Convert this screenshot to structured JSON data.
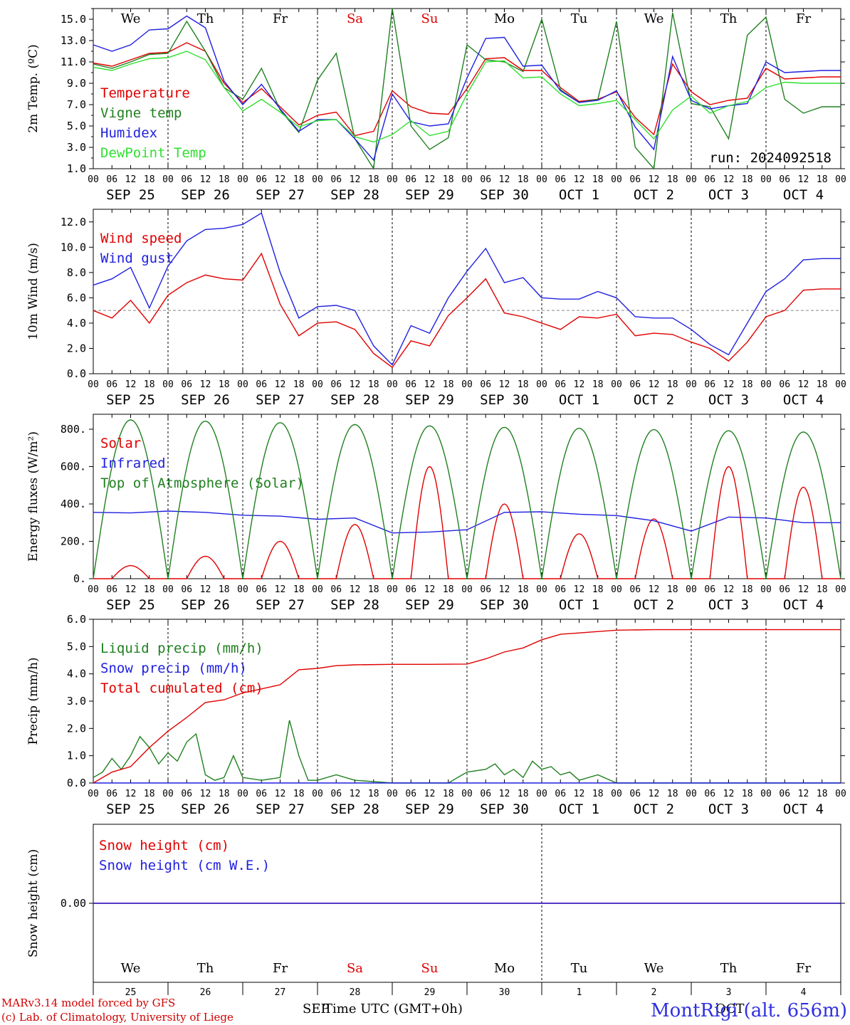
{
  "run_label": "run: 2024092518",
  "day_names": [
    {
      "name": "We",
      "color": "#000000"
    },
    {
      "name": "Th",
      "color": "#000000"
    },
    {
      "name": "Fr",
      "color": "#000000"
    },
    {
      "name": "Sa",
      "color": "#e00000"
    },
    {
      "name": "Su",
      "color": "#e00000"
    },
    {
      "name": "Mo",
      "color": "#000000"
    },
    {
      "name": "Tu",
      "color": "#000000"
    },
    {
      "name": "We",
      "color": "#000000"
    },
    {
      "name": "Th",
      "color": "#000000"
    },
    {
      "name": "Fr",
      "color": "#000000"
    }
  ],
  "dates": [
    "SEP 25",
    "SEP 26",
    "SEP 27",
    "SEP 28",
    "SEP 29",
    "SEP 30",
    "OCT  1",
    "OCT  2",
    "OCT  3",
    "OCT  4"
  ],
  "hour_ticks": [
    "00",
    "06",
    "12",
    "18"
  ],
  "end_hour": "00",
  "day_numbers": [
    "25",
    "26",
    "27",
    "28",
    "29",
    "30",
    "1",
    "2",
    "3",
    "4"
  ],
  "bottom_month_left": "SEP",
  "bottom_month_right": "OCT",
  "footer": {
    "line1": "MARv3.14 model forced by GFS",
    "line2": "(c) Lab. of Climatology, University of Liege",
    "xlabel": "Time UTC (GMT+0h)",
    "station": "MontRigi (alt. 656m)"
  },
  "chart_data": [
    {
      "type": "line",
      "ylabel": "2m Temp. (ºC)",
      "ylim": [
        1.0,
        16.0
      ],
      "yticks": [
        "1.0",
        "3.0",
        "5.0",
        "7.0",
        "9.0",
        "11.0",
        "13.0",
        "15.0"
      ],
      "x_unit": "hours since SEP 25 00 UTC",
      "series": [
        {
          "name": "Temperature",
          "color": "#e00000",
          "x": [
            0,
            6,
            12,
            18,
            24,
            30,
            36,
            42,
            48,
            54,
            60,
            66,
            72,
            78,
            84,
            90,
            96,
            102,
            108,
            114,
            120,
            126,
            132,
            138,
            144,
            150,
            156,
            162,
            168,
            174,
            180,
            186,
            192,
            198,
            204,
            210,
            216,
            222,
            228,
            234,
            240
          ],
          "y": [
            10.9,
            10.6,
            11.2,
            11.8,
            11.9,
            12.8,
            12.0,
            9.0,
            7.2,
            8.5,
            6.8,
            5.1,
            6.0,
            6.3,
            4.1,
            4.5,
            8.3,
            6.8,
            6.2,
            6.1,
            8.5,
            11.3,
            11.4,
            10.2,
            10.2,
            8.6,
            7.3,
            7.5,
            8.2,
            5.8,
            4.2,
            10.8,
            8.2,
            7.0,
            7.4,
            7.6,
            10.4,
            9.4,
            9.5,
            9.6,
            9.6
          ]
        },
        {
          "name": "Vigne temp",
          "color": "#208020",
          "x": [
            0,
            6,
            12,
            18,
            24,
            30,
            36,
            42,
            48,
            54,
            60,
            66,
            72,
            78,
            84,
            90,
            96,
            102,
            108,
            114,
            120,
            126,
            132,
            138,
            144,
            150,
            156,
            162,
            168,
            174,
            180,
            186,
            192,
            198,
            204,
            210,
            216,
            222,
            228,
            234,
            240
          ],
          "y": [
            10.8,
            10.4,
            11.0,
            11.7,
            11.8,
            14.8,
            12.0,
            8.6,
            7.5,
            10.4,
            6.5,
            4.4,
            9.3,
            11.8,
            3.8,
            0.8,
            16.0,
            5.0,
            2.8,
            3.9,
            12.6,
            11.2,
            11.0,
            10.1,
            15.0,
            8.4,
            7.2,
            7.5,
            14.8,
            3.0,
            0.5,
            15.6,
            7.1,
            6.8,
            3.8,
            13.5,
            15.2,
            7.5,
            6.2,
            6.8,
            6.8
          ]
        },
        {
          "name": "Humidex",
          "color": "#2020e0",
          "x": [
            0,
            6,
            12,
            18,
            24,
            30,
            36,
            42,
            48,
            54,
            60,
            66,
            72,
            78,
            84,
            90,
            96,
            102,
            108,
            114,
            120,
            126,
            132,
            138,
            144,
            150,
            156,
            162,
            168,
            174,
            180,
            186,
            192,
            198,
            204,
            210,
            216,
            222,
            228,
            234,
            240
          ],
          "y": [
            12.6,
            12.0,
            12.6,
            14.0,
            14.1,
            15.3,
            14.2,
            9.2,
            7.0,
            8.9,
            6.6,
            4.5,
            5.6,
            5.6,
            3.8,
            1.8,
            8.0,
            5.4,
            5.0,
            5.2,
            9.5,
            13.2,
            13.3,
            10.6,
            10.7,
            8.3,
            7.2,
            7.4,
            8.3,
            4.9,
            2.8,
            11.5,
            7.4,
            6.6,
            6.9,
            7.1,
            11.0,
            10.0,
            10.1,
            10.2,
            10.2
          ]
        },
        {
          "name": "DewPoint Temp",
          "color": "#30e030",
          "x": [
            0,
            6,
            12,
            18,
            24,
            30,
            36,
            42,
            48,
            54,
            60,
            66,
            72,
            78,
            84,
            90,
            96,
            102,
            108,
            114,
            120,
            126,
            132,
            138,
            144,
            150,
            156,
            162,
            168,
            174,
            180,
            186,
            192,
            198,
            204,
            210,
            216,
            222,
            228,
            234,
            240
          ],
          "y": [
            10.5,
            10.2,
            10.8,
            11.3,
            11.4,
            12.0,
            11.2,
            8.6,
            6.4,
            7.5,
            6.3,
            4.9,
            5.5,
            5.6,
            4.0,
            3.5,
            4.2,
            5.5,
            4.1,
            4.5,
            8.0,
            11.0,
            11.1,
            9.5,
            9.6,
            8.0,
            6.9,
            7.1,
            7.4,
            5.6,
            3.8,
            6.5,
            7.8,
            6.2,
            6.9,
            7.3,
            8.6,
            9.1,
            9.0,
            9.0,
            9.0
          ]
        }
      ]
    },
    {
      "type": "line",
      "ylabel": "10m Wind (m/s)",
      "ylim": [
        0.0,
        13.0
      ],
      "yticks": [
        "0.0",
        "2.0",
        "4.0",
        "6.0",
        "8.0",
        "10.0",
        "12.0"
      ],
      "ref_line": 5.0,
      "series": [
        {
          "name": "Wind speed",
          "color": "#e00000",
          "x": [
            0,
            6,
            12,
            18,
            24,
            30,
            36,
            42,
            48,
            54,
            60,
            66,
            72,
            78,
            84,
            90,
            96,
            102,
            108,
            114,
            120,
            126,
            132,
            138,
            144,
            150,
            156,
            162,
            168,
            174,
            180,
            186,
            192,
            198,
            204,
            210,
            216,
            222,
            228,
            234,
            240
          ],
          "y": [
            5.0,
            4.4,
            5.8,
            4.0,
            6.2,
            7.2,
            7.8,
            7.5,
            7.4,
            9.5,
            5.5,
            3.0,
            4.0,
            4.1,
            3.5,
            1.6,
            0.5,
            2.6,
            2.2,
            4.6,
            6.0,
            7.5,
            4.8,
            4.5,
            4.0,
            3.5,
            4.5,
            4.4,
            4.7,
            3.0,
            3.2,
            3.1,
            2.5,
            2.0,
            1.0,
            2.5,
            4.5,
            5.0,
            6.6,
            6.7,
            6.7
          ]
        },
        {
          "name": "Wind gust",
          "color": "#2020e0",
          "x": [
            0,
            6,
            12,
            18,
            24,
            30,
            36,
            42,
            48,
            54,
            60,
            66,
            72,
            78,
            84,
            90,
            96,
            102,
            108,
            114,
            120,
            126,
            132,
            138,
            144,
            150,
            156,
            162,
            168,
            174,
            180,
            186,
            192,
            198,
            204,
            210,
            216,
            222,
            228,
            234,
            240
          ],
          "y": [
            7.0,
            7.5,
            8.4,
            5.2,
            8.5,
            10.5,
            11.4,
            11.5,
            11.8,
            12.7,
            8.0,
            4.4,
            5.3,
            5.4,
            5.0,
            2.2,
            0.7,
            3.8,
            3.2,
            6.0,
            8.1,
            9.9,
            7.2,
            7.6,
            6.0,
            5.9,
            5.9,
            6.5,
            6.0,
            4.5,
            4.4,
            4.4,
            3.5,
            2.3,
            1.5,
            4.0,
            6.5,
            7.5,
            9.0,
            9.1,
            9.1
          ]
        }
      ]
    },
    {
      "type": "line",
      "ylabel": "Energy fluxes (W/m²)",
      "ylim": [
        0,
        880
      ],
      "yticks": [
        "0.",
        "200.",
        "400.",
        "600.",
        "800."
      ],
      "series": [
        {
          "name": "Solar",
          "color": "#e00000",
          "peaks": [
            70,
            120,
            200,
            290,
            600,
            400,
            240,
            320,
            600,
            490
          ],
          "peak_hour": 12,
          "half_width": 6
        },
        {
          "name": "Infrared",
          "color": "#2020e0",
          "x": [
            0,
            12,
            24,
            36,
            48,
            60,
            72,
            84,
            96,
            108,
            120,
            132,
            144,
            156,
            168,
            180,
            192,
            204,
            216,
            228,
            240
          ],
          "y": [
            355,
            352,
            362,
            355,
            340,
            335,
            318,
            325,
            245,
            250,
            262,
            355,
            358,
            345,
            338,
            310,
            255,
            330,
            325,
            300,
            300
          ]
        },
        {
          "name": "Top of Atmosphere (Solar)",
          "color": "#208020",
          "peaks": [
            850,
            843,
            835,
            825,
            818,
            810,
            805,
            798,
            792,
            785
          ],
          "peak_hour": 12,
          "half_width": 12
        }
      ]
    },
    {
      "type": "line",
      "ylabel": "Precip (mm/h)",
      "ylim": [
        0.0,
        6.0
      ],
      "yticks": [
        "0.0",
        "1.0",
        "2.0",
        "3.0",
        "4.0",
        "5.0",
        "6.0"
      ],
      "series": [
        {
          "name": "Liquid precip (mm/h)",
          "color": "#208020",
          "x": [
            0,
            3,
            6,
            9,
            12,
            15,
            18,
            21,
            24,
            27,
            30,
            33,
            36,
            39,
            42,
            45,
            48,
            54,
            60,
            63,
            66,
            69,
            72,
            78,
            84,
            90,
            96,
            102,
            108,
            114,
            120,
            126,
            129,
            132,
            135,
            138,
            141,
            144,
            147,
            150,
            153,
            156,
            162,
            168,
            174,
            180,
            216,
            240
          ],
          "y": [
            0.2,
            0.4,
            0.9,
            0.5,
            1.0,
            1.7,
            1.3,
            0.7,
            1.1,
            0.8,
            1.5,
            1.8,
            0.3,
            0.1,
            0.2,
            1.0,
            0.2,
            0.1,
            0.2,
            2.3,
            1.0,
            0.1,
            0.1,
            0.3,
            0.1,
            0.05,
            0.0,
            0.0,
            0.0,
            0.0,
            0.4,
            0.5,
            0.7,
            0.3,
            0.5,
            0.2,
            0.8,
            0.5,
            0.6,
            0.3,
            0.4,
            0.1,
            0.3,
            0.0,
            0.0,
            0.0,
            0.0,
            0.0
          ]
        },
        {
          "name": "Snow precip (mm/h)",
          "color": "#2020e0",
          "x": [
            0,
            240
          ],
          "y": [
            0,
            0
          ]
        },
        {
          "name": "Total cumulated (cm)",
          "color": "#e00000",
          "x": [
            0,
            6,
            12,
            18,
            24,
            30,
            36,
            42,
            48,
            54,
            60,
            66,
            72,
            78,
            84,
            96,
            108,
            120,
            126,
            132,
            138,
            144,
            150,
            156,
            168,
            180,
            240
          ],
          "y": [
            0.0,
            0.4,
            0.6,
            1.3,
            1.9,
            2.4,
            2.95,
            3.05,
            3.3,
            3.45,
            3.6,
            4.15,
            4.2,
            4.3,
            4.33,
            4.35,
            4.35,
            4.36,
            4.55,
            4.8,
            4.95,
            5.25,
            5.45,
            5.5,
            5.6,
            5.62,
            5.62
          ]
        }
      ]
    },
    {
      "type": "line",
      "ylabel": "Snow height (cm)",
      "ylim": [
        -1,
        1
      ],
      "yticks": [
        "0.00"
      ],
      "series": [
        {
          "name": "Snow height (cm)",
          "color": "#e00000",
          "x": [
            0,
            240
          ],
          "y": [
            0,
            0
          ]
        },
        {
          "name": "Snow height (cm W.E.)",
          "color": "#2020e0",
          "x": [
            0,
            240
          ],
          "y": [
            0,
            0
          ]
        }
      ]
    }
  ]
}
